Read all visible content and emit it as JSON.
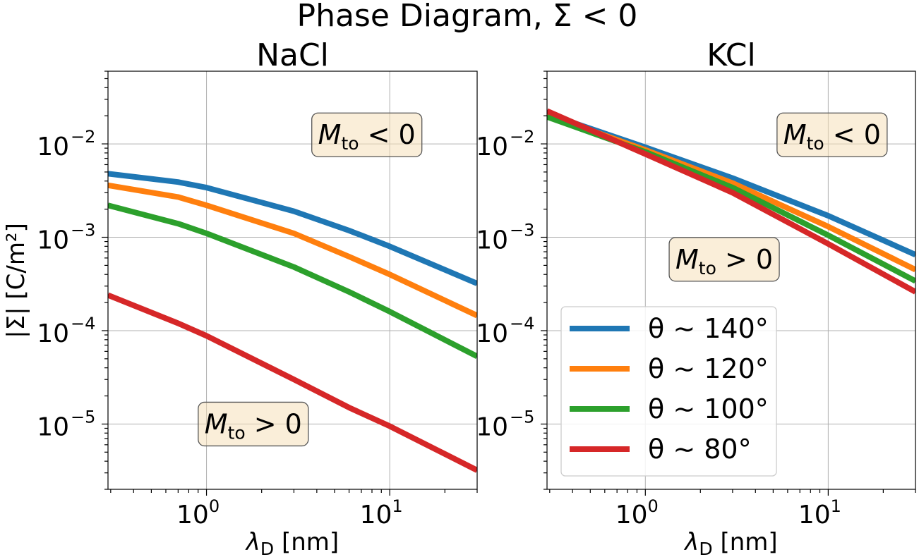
{
  "figure": {
    "suptitle": "Phase Diagram, Σ < 0"
  },
  "chart_data": [
    {
      "type": "line",
      "title": "NaCl",
      "xlabel_main": "λ",
      "xlabel_sub": "D",
      "xlabel_tail": " [nm]",
      "ylabel": "|Σ| [C/m²]",
      "xscale": "log",
      "yscale": "log",
      "xlim": [
        0.29,
        30
      ],
      "ylim": [
        2e-06,
        0.06
      ],
      "grid": true,
      "xticks": [
        {
          "base": "10",
          "exp": "0",
          "value": 1
        },
        {
          "base": "10",
          "exp": "1",
          "value": 10
        }
      ],
      "yticks": [
        {
          "base": "10",
          "exp": "−2",
          "value": 0.01
        },
        {
          "base": "10",
          "exp": "−3",
          "value": 0.001
        },
        {
          "base": "10",
          "exp": "−4",
          "value": 0.0001
        },
        {
          "base": "10",
          "exp": "−5",
          "value": 1e-05
        }
      ],
      "annotations": [
        {
          "main": "M",
          "sub": "to",
          "rel": " < 0",
          "x": 7.5,
          "y": 0.0125
        },
        {
          "main": "M",
          "sub": "to",
          "rel": " > 0",
          "x": 1.8,
          "y": 1e-05
        }
      ],
      "series": [
        {
          "name": "θ ∼ 140°",
          "color": "#1f77b4",
          "x": [
            0.29,
            0.7,
            1.0,
            3.0,
            6.0,
            10.0,
            30.0
          ],
          "y": [
            0.0048,
            0.0039,
            0.0034,
            0.0019,
            0.00118,
            0.0008,
            0.00032
          ]
        },
        {
          "name": "θ ∼ 120°",
          "color": "#ff7f0e",
          "x": [
            0.29,
            0.7,
            1.0,
            3.0,
            6.0,
            10.0,
            30.0
          ],
          "y": [
            0.0036,
            0.0027,
            0.0022,
            0.0011,
            0.00062,
            0.0004,
            0.000145
          ]
        },
        {
          "name": "θ ∼ 100°",
          "color": "#2ca02c",
          "x": [
            0.29,
            0.7,
            1.0,
            3.0,
            6.0,
            10.0,
            30.0
          ],
          "y": [
            0.0022,
            0.0014,
            0.0011,
            0.00048,
            0.00026,
            0.00016,
            5.3e-05
          ]
        },
        {
          "name": "θ ∼ 80°",
          "color": "#d62728",
          "x": [
            0.29,
            0.7,
            1.0,
            3.0,
            6.0,
            10.0,
            30.0
          ],
          "y": [
            0.00024,
            0.00012,
            8.8e-05,
            3e-05,
            1.5e-05,
            9.5e-06,
            3.2e-06
          ]
        }
      ]
    },
    {
      "type": "line",
      "title": "KCl",
      "xlabel_main": "λ",
      "xlabel_sub": "D",
      "xlabel_tail": " [nm]",
      "xscale": "log",
      "yscale": "log",
      "xlim": [
        0.29,
        30
      ],
      "ylim": [
        2e-06,
        0.06
      ],
      "grid": true,
      "legend_position": "lower-left",
      "xticks": [
        {
          "base": "10",
          "exp": "0",
          "value": 1
        },
        {
          "base": "10",
          "exp": "1",
          "value": 10
        }
      ],
      "yticks": [
        {
          "base": "10",
          "exp": "−2",
          "value": 0.01
        },
        {
          "base": "10",
          "exp": "−3",
          "value": 0.001
        },
        {
          "base": "10",
          "exp": "−4",
          "value": 0.0001
        },
        {
          "base": "10",
          "exp": "−5",
          "value": 1e-05
        }
      ],
      "annotations": [
        {
          "main": "M",
          "sub": "to",
          "rel": " < 0",
          "x": 10.5,
          "y": 0.0125
        },
        {
          "main": "M",
          "sub": "to",
          "rel": " > 0",
          "x": 2.7,
          "y": 0.00058
        }
      ],
      "series": [
        {
          "name": "θ ∼ 140°",
          "color": "#1f77b4",
          "x": [
            0.29,
            1.0,
            3.0,
            10.0,
            30.0
          ],
          "y": [
            0.021,
            0.0092,
            0.0043,
            0.0017,
            0.00065
          ]
        },
        {
          "name": "θ ∼ 120°",
          "color": "#ff7f0e",
          "x": [
            0.29,
            1.0,
            3.0,
            10.0,
            30.0
          ],
          "y": [
            0.0205,
            0.0086,
            0.0038,
            0.0013,
            0.00045
          ]
        },
        {
          "name": "θ ∼ 100°",
          "color": "#2ca02c",
          "x": [
            0.29,
            1.0,
            3.0,
            10.0,
            30.0
          ],
          "y": [
            0.0195,
            0.0082,
            0.0034,
            0.00105,
            0.00034
          ]
        },
        {
          "name": "θ ∼ 80°",
          "color": "#d62728",
          "x": [
            0.29,
            1.0,
            3.0,
            10.0,
            30.0
          ],
          "y": [
            0.0225,
            0.0078,
            0.003,
            0.00085,
            0.00026
          ]
        }
      ]
    }
  ]
}
